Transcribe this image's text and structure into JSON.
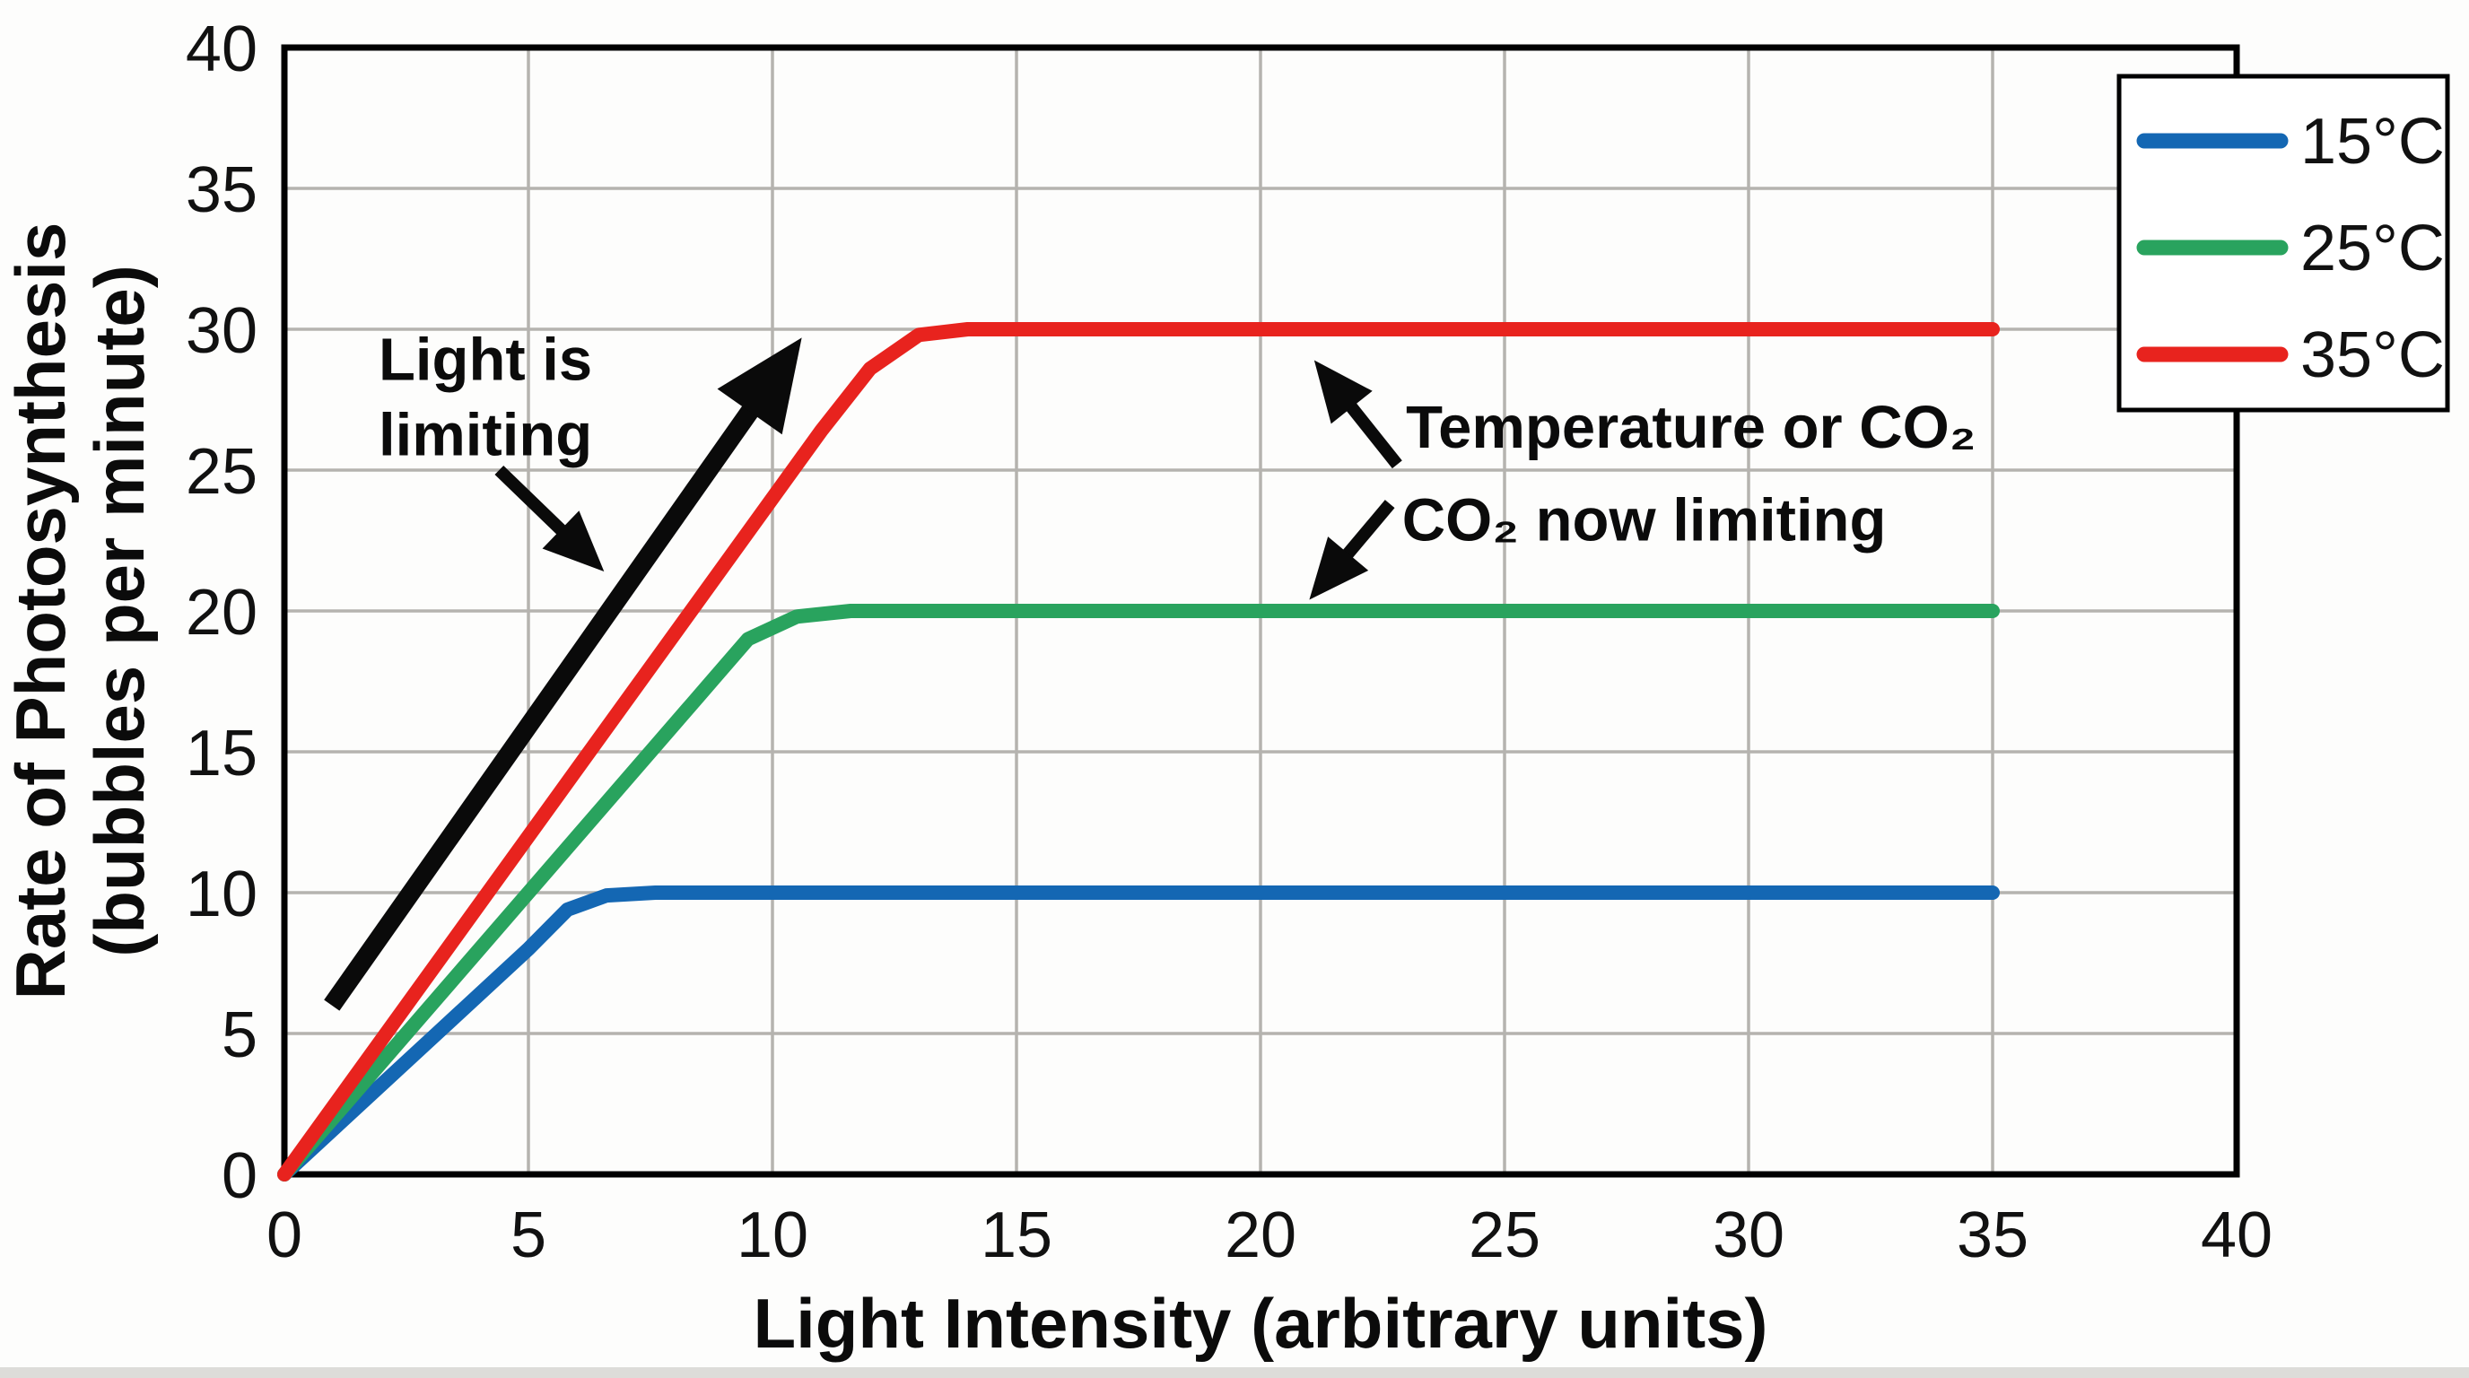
{
  "figure": {
    "background": "#fdfdfc"
  },
  "chart_data": {
    "type": "line",
    "title": "",
    "xlabel": "Light Intensity (arbitrary units)",
    "ylabel_line1": "Rate of Photosynthesis",
    "ylabel_line2": "(bubbles per minute)",
    "xlim": [
      0,
      40
    ],
    "ylim": [
      0,
      40
    ],
    "xticks": [
      0,
      5,
      10,
      15,
      20,
      25,
      30,
      35,
      40
    ],
    "yticks": [
      0,
      5,
      10,
      15,
      20,
      25,
      30,
      35,
      40
    ],
    "grid": true,
    "grid_color": "#b5b3af",
    "axis_color": "#000000",
    "arrow_color": "#0a0a0a",
    "legend_position": "top-right",
    "series": [
      {
        "key": "15c",
        "name": "15°C",
        "color": "#1467b3",
        "plateau": 10,
        "points": [
          [
            0,
            0
          ],
          [
            5,
            8
          ],
          [
            5.8,
            9.4
          ],
          [
            6.6,
            9.9
          ],
          [
            7.6,
            10
          ],
          [
            35,
            10
          ]
        ]
      },
      {
        "key": "25c",
        "name": "25°C",
        "color": "#29a35e",
        "plateau": 20,
        "points": [
          [
            0,
            0
          ],
          [
            8.5,
            17
          ],
          [
            9.5,
            19
          ],
          [
            10.5,
            19.8
          ],
          [
            11.6,
            20
          ],
          [
            35,
            20
          ]
        ]
      },
      {
        "key": "35c",
        "name": "35°C",
        "color": "#e8231e",
        "plateau": 30,
        "points": [
          [
            0,
            0
          ],
          [
            11,
            26.4
          ],
          [
            12,
            28.6
          ],
          [
            13,
            29.8
          ],
          [
            14,
            30
          ],
          [
            35,
            30
          ]
        ]
      }
    ],
    "annotations": [
      {
        "id": "light-is-limiting",
        "lines": [
          "Light is",
          "limiting"
        ],
        "x": 1.93,
        "y": 28.2,
        "anchor": "start"
      },
      {
        "id": "temperature-or-co2",
        "lines": [
          "Temperature or CO₂"
        ],
        "x": 22.98,
        "y": 25.8,
        "anchor": "start"
      },
      {
        "id": "co2-now-limiting",
        "lines": [
          "CO₂ now limiting"
        ],
        "x": 22.9,
        "y": 22.5,
        "anchor": "start"
      }
    ],
    "arrows": [
      {
        "id": "light-limiting-main-arrow",
        "from": [
          0.97,
          6.0
        ],
        "to": [
          10.6,
          29.7
        ],
        "width": 21
      },
      {
        "id": "light-limiting-pointer-arrow",
        "from": [
          4.4,
          25.0
        ],
        "to": [
          6.55,
          21.4
        ],
        "width": 14
      },
      {
        "id": "temperature-pointer-arrow",
        "from": [
          22.8,
          25.2
        ],
        "to": [
          21.1,
          28.9
        ],
        "width": 14
      },
      {
        "id": "co2-pointer-arrow",
        "from": [
          22.65,
          23.8
        ],
        "to": [
          21.0,
          20.4
        ],
        "width": 14
      }
    ]
  }
}
